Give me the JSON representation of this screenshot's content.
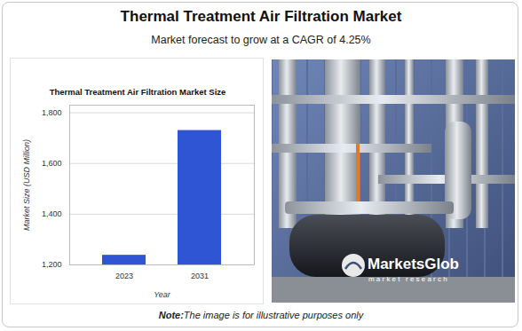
{
  "header": {
    "title": "Thermal Treatment Air Filtration Market",
    "subtitle": "Market forecast to grow at a CAGR of 4.25%"
  },
  "chart_data": {
    "type": "bar",
    "title": "Thermal Treatment Air Filtration Market Size",
    "x_label": "Year",
    "y_label": "Market Size (USD Million)",
    "categories": [
      "2023",
      "2031"
    ],
    "values": [
      1238,
      1730
    ],
    "color": "#2f55d4",
    "ylim": [
      1200,
      1830
    ],
    "yticks": [
      {
        "value": 1200,
        "label": "1,200"
      },
      {
        "value": 1400,
        "label": "1,400"
      },
      {
        "value": 1600,
        "label": "1,600"
      },
      {
        "value": 1800,
        "label": "1,800"
      }
    ],
    "grid": true
  },
  "image": {
    "logo": "MarketsGlob",
    "logo_subtitle": "market research"
  },
  "note": {
    "label": "Note:",
    "text": "The image is for illustrative purposes only"
  }
}
